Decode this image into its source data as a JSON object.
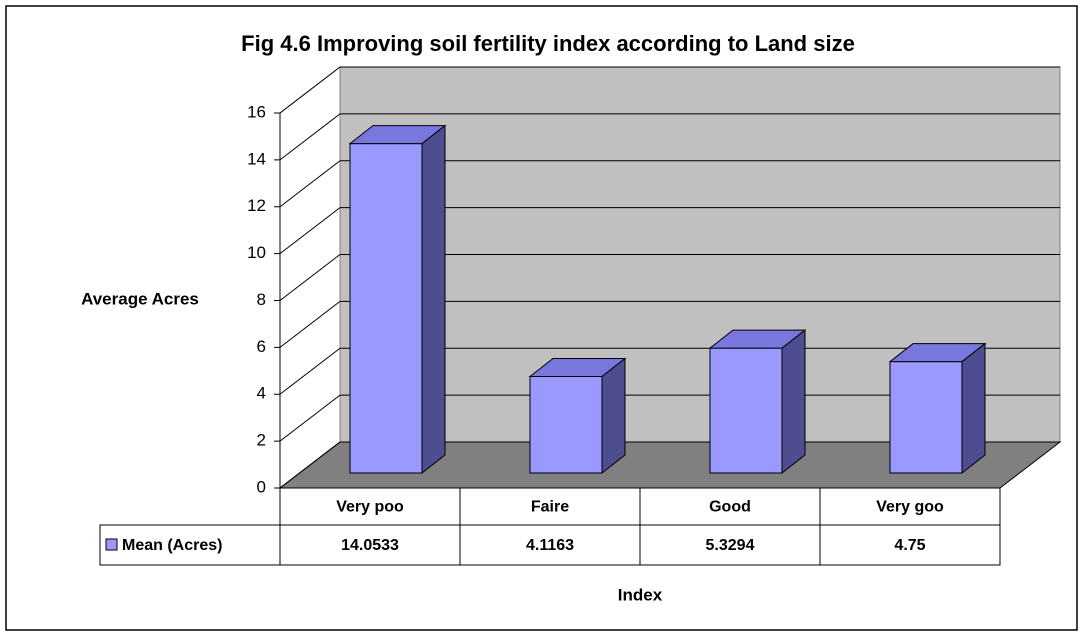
{
  "chart_data": {
    "type": "bar3d",
    "title": "Fig 4.6  Improving soil fertility index according to Land size",
    "y_label": "Average Acres",
    "x_label": "Index",
    "categories": [
      "Very poo",
      "Faire",
      "Good",
      "Very goo"
    ],
    "series": [
      {
        "name": "Mean (Acres)",
        "color": "#9999ff",
        "values": [
          14.0533,
          4.1163,
          5.3294,
          4.75
        ]
      }
    ],
    "ylim": [
      0,
      16
    ],
    "yticks": [
      0,
      2,
      4,
      6,
      8,
      10,
      12,
      14,
      16
    ],
    "grid": true
  }
}
